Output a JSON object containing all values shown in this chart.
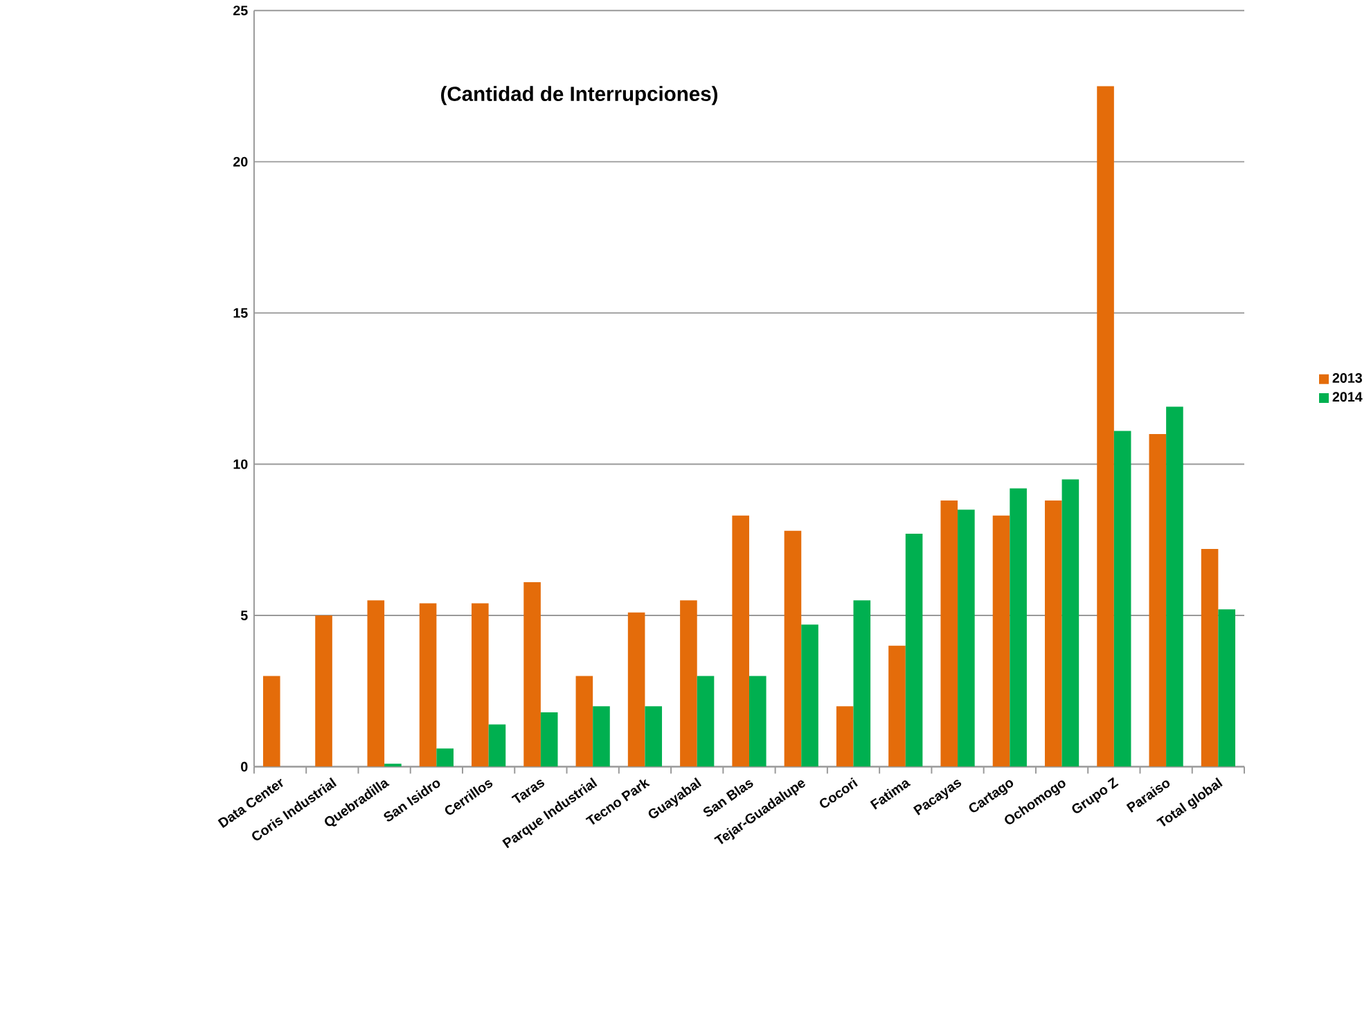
{
  "chart_data": {
    "type": "bar",
    "title": "(Cantidad de Interrupciones)",
    "categories": [
      "Data Center",
      "Coris Industrial",
      "Quebradilla",
      "San Isidro",
      "Cerrillos",
      "Taras",
      "Parque Industrial",
      "Tecno Park",
      "Guayabal",
      "San Blas",
      "Tejar-Guadalupe",
      "Cocori",
      "Fatima",
      "Pacayas",
      "Cartago",
      "Ochomogo",
      "Grupo Z",
      "Paraiso",
      "Total global"
    ],
    "series": [
      {
        "name": "2013",
        "color": "#e46c0a",
        "values": [
          3.0,
          5.0,
          5.5,
          5.4,
          5.4,
          6.1,
          3.0,
          5.1,
          5.5,
          8.3,
          7.8,
          2.0,
          4.0,
          8.8,
          8.3,
          8.8,
          22.5,
          11.0,
          7.2
        ]
      },
      {
        "name": "2014",
        "color": "#00b050",
        "values": [
          0,
          0,
          0.1,
          0.6,
          1.4,
          1.8,
          2.0,
          2.0,
          3.0,
          3.0,
          4.7,
          5.5,
          7.7,
          8.5,
          9.2,
          9.5,
          11.1,
          11.9,
          5.2
        ]
      }
    ],
    "ylim": [
      0,
      25
    ],
    "yticks": [
      0,
      5,
      10,
      15,
      20,
      25
    ],
    "grid": "y",
    "legend": "right"
  }
}
